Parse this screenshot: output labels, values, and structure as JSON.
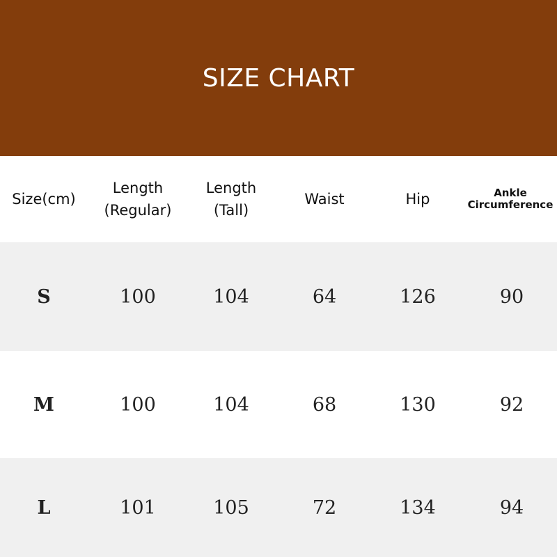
{
  "title": "SIZE CHART",
  "colors": {
    "banner": "#833d0c",
    "stripe": "#f0f0f0"
  },
  "headers": [
    "Size(cm)",
    "Length\n(Regular)",
    "Length\n(Tall)",
    "Waist",
    "Hip",
    "Ankle\nCircumference"
  ],
  "rows": [
    [
      "S",
      "100",
      "104",
      "64",
      "126",
      "90"
    ],
    [
      "M",
      "100",
      "104",
      "68",
      "130",
      "92"
    ],
    [
      "L",
      "101",
      "105",
      "72",
      "134",
      "94"
    ]
  ]
}
